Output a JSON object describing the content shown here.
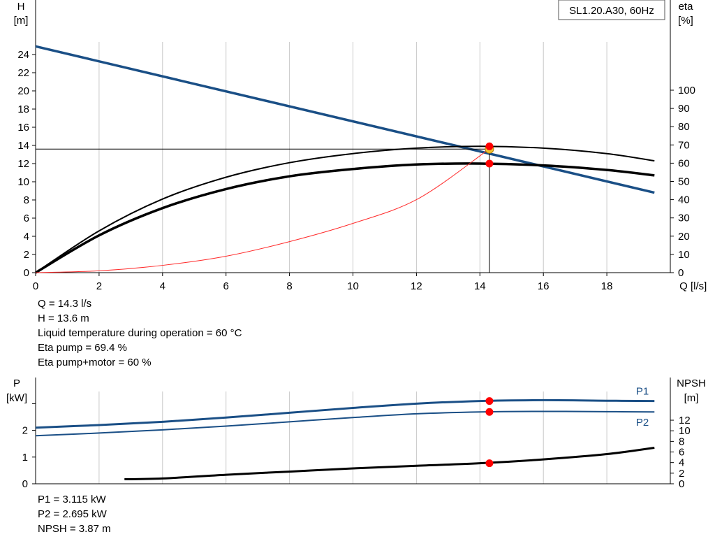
{
  "model_box": "SL1.20.A30, 60Hz",
  "top_info": [
    "Q = 14.3 l/s",
    "H = 13.6 m",
    "Liquid temperature during operation = 60 °C",
    "Eta pump = 69.4 %",
    "Eta pump+motor = 60 %"
  ],
  "bottom_info": [
    "P1 = 3.115 kW",
    "P2 = 2.695 kW",
    "NPSH = 3.87 m"
  ],
  "colors": {
    "system": "#1a4f86",
    "curve": "#000000",
    "eta": "#ff2a2a",
    "marker": "#ff0000",
    "grid": "#c8c8c8"
  },
  "chart_data": [
    {
      "type": "line",
      "left_axis": {
        "label_1": "H",
        "label_2": "[m]",
        "ylim": [
          0,
          26
        ],
        "ticks": [
          0,
          2,
          4,
          6,
          8,
          10,
          12,
          14,
          16,
          18,
          20,
          22,
          24
        ]
      },
      "right_axis": {
        "label_1": "eta",
        "label_2": "[%]",
        "ylim": [
          0,
          100
        ],
        "ticks": [
          0,
          10,
          20,
          30,
          40,
          50,
          60,
          70,
          80,
          90,
          100
        ]
      },
      "x_axis": {
        "label": "Q [l/s]",
        "xlim": [
          0,
          20
        ],
        "ticks": [
          0,
          2,
          4,
          6,
          8,
          10,
          12,
          14,
          16,
          18
        ]
      },
      "series": [
        {
          "id": "system",
          "axis": "left",
          "x": [
            0,
            19.5
          ],
          "values": [
            24.9,
            8.8
          ]
        },
        {
          "id": "head-thin",
          "axis": "left",
          "x": [
            0,
            2,
            4,
            6,
            8,
            10,
            12,
            14,
            16,
            18,
            19.5
          ],
          "values": [
            0,
            4.6,
            8.1,
            10.5,
            12.1,
            13.1,
            13.7,
            13.9,
            13.7,
            13.1,
            12.3
          ]
        },
        {
          "id": "head-thick",
          "axis": "left",
          "x": [
            0,
            2,
            4,
            6,
            8,
            10,
            12,
            14,
            16,
            18,
            19.5
          ],
          "values": [
            0,
            4.1,
            7.1,
            9.2,
            10.6,
            11.4,
            11.9,
            12.0,
            11.8,
            11.3,
            10.7
          ]
        },
        {
          "id": "eta-pump",
          "axis": "right",
          "x": [
            0,
            2,
            4,
            6,
            8,
            10,
            12,
            14,
            14.3
          ],
          "values": [
            0,
            1,
            4,
            9,
            17,
            27,
            40,
            64,
            69.4
          ]
        }
      ],
      "operating_point": {
        "q": 14.3,
        "h": 13.6,
        "eta_pump": 69.4,
        "eta_pump_motor": 60,
        "head_thick_point": 12.0
      }
    },
    {
      "type": "line",
      "left_axis": {
        "label_1": "P",
        "label_2": "[kW]",
        "ylim": [
          0,
          3
        ],
        "ticks": [
          0,
          1,
          2
        ]
      },
      "right_axis": {
        "label_1": "NPSH",
        "label_2": "[m]",
        "ylim": [
          0,
          18
        ],
        "ticks": [
          0,
          2,
          4,
          6,
          8,
          10,
          12
        ]
      },
      "x_axis": {
        "xlim": [
          0,
          20
        ]
      },
      "series": [
        {
          "name": "P1",
          "axis": "left",
          "x": [
            0,
            2,
            4,
            6,
            8,
            10,
            12,
            14,
            16,
            18,
            19.5
          ],
          "values": [
            2.1,
            2.2,
            2.32,
            2.48,
            2.66,
            2.84,
            3.0,
            3.1,
            3.13,
            3.11,
            3.1
          ]
        },
        {
          "name": "P2",
          "axis": "left",
          "x": [
            0,
            2,
            4,
            6,
            8,
            10,
            12,
            14,
            16,
            18,
            19.5
          ],
          "values": [
            1.8,
            1.9,
            2.02,
            2.16,
            2.32,
            2.48,
            2.62,
            2.69,
            2.71,
            2.7,
            2.69
          ]
        },
        {
          "id": "npsh",
          "axis": "right",
          "x": [
            2.8,
            4,
            6,
            8,
            10,
            12,
            14,
            16,
            18,
            19.5
          ],
          "values": [
            0.85,
            1.0,
            1.7,
            2.3,
            2.9,
            3.4,
            3.87,
            4.6,
            5.6,
            6.8
          ]
        }
      ],
      "operating_point": {
        "q": 14.3,
        "p1": 3.115,
        "p2": 2.695,
        "npsh": 3.87
      }
    }
  ]
}
